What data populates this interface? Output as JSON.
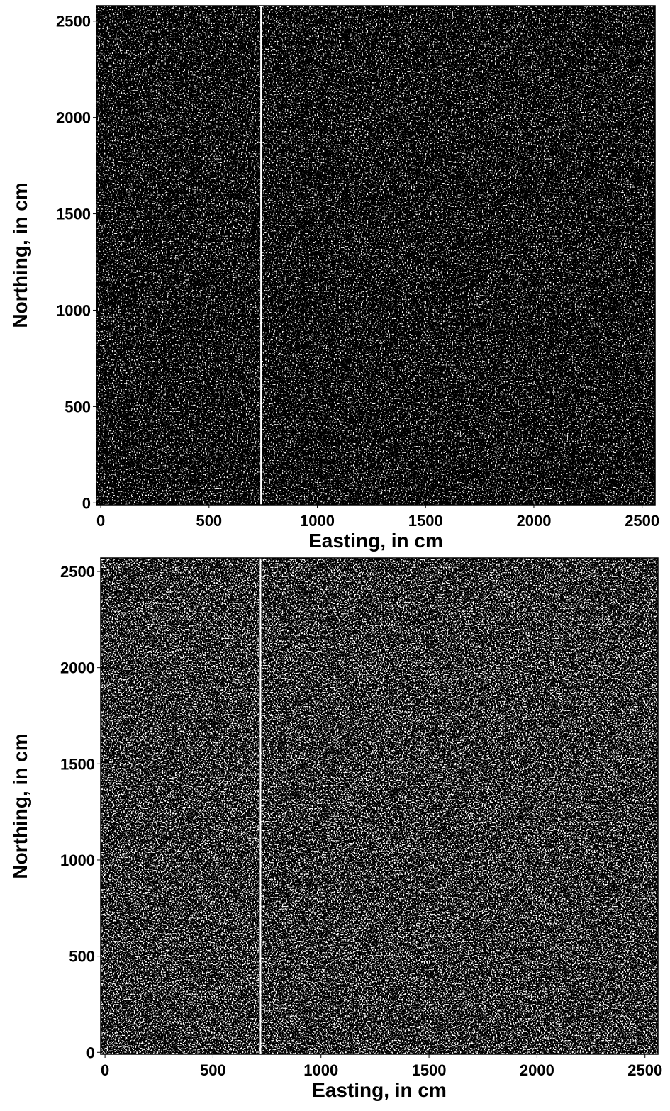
{
  "chart_data": [
    {
      "type": "raster",
      "xlabel": "Easting, in cm",
      "ylabel": "Northing, in cm",
      "xlim": [
        -20,
        2560
      ],
      "ylim": [
        -10,
        2580
      ],
      "xticks": [
        0,
        500,
        1000,
        1500,
        2000,
        2500
      ],
      "yticks": [
        0,
        500,
        1000,
        1500,
        2000,
        2500
      ],
      "vlines": [
        740
      ],
      "color": "#000000",
      "line_color": "#ffffff"
    },
    {
      "type": "raster",
      "xlabel": "Easting, in cm",
      "ylabel": "Northing, in cm",
      "xlim": [
        -20,
        2560
      ],
      "ylim": [
        -10,
        2570
      ],
      "xticks": [
        0,
        500,
        1000,
        1500,
        2000,
        2500
      ],
      "yticks": [
        0,
        500,
        1000,
        1500,
        2000,
        2500
      ],
      "vlines": [
        720
      ],
      "color": "#000000",
      "line_color": "#ffffff"
    }
  ]
}
